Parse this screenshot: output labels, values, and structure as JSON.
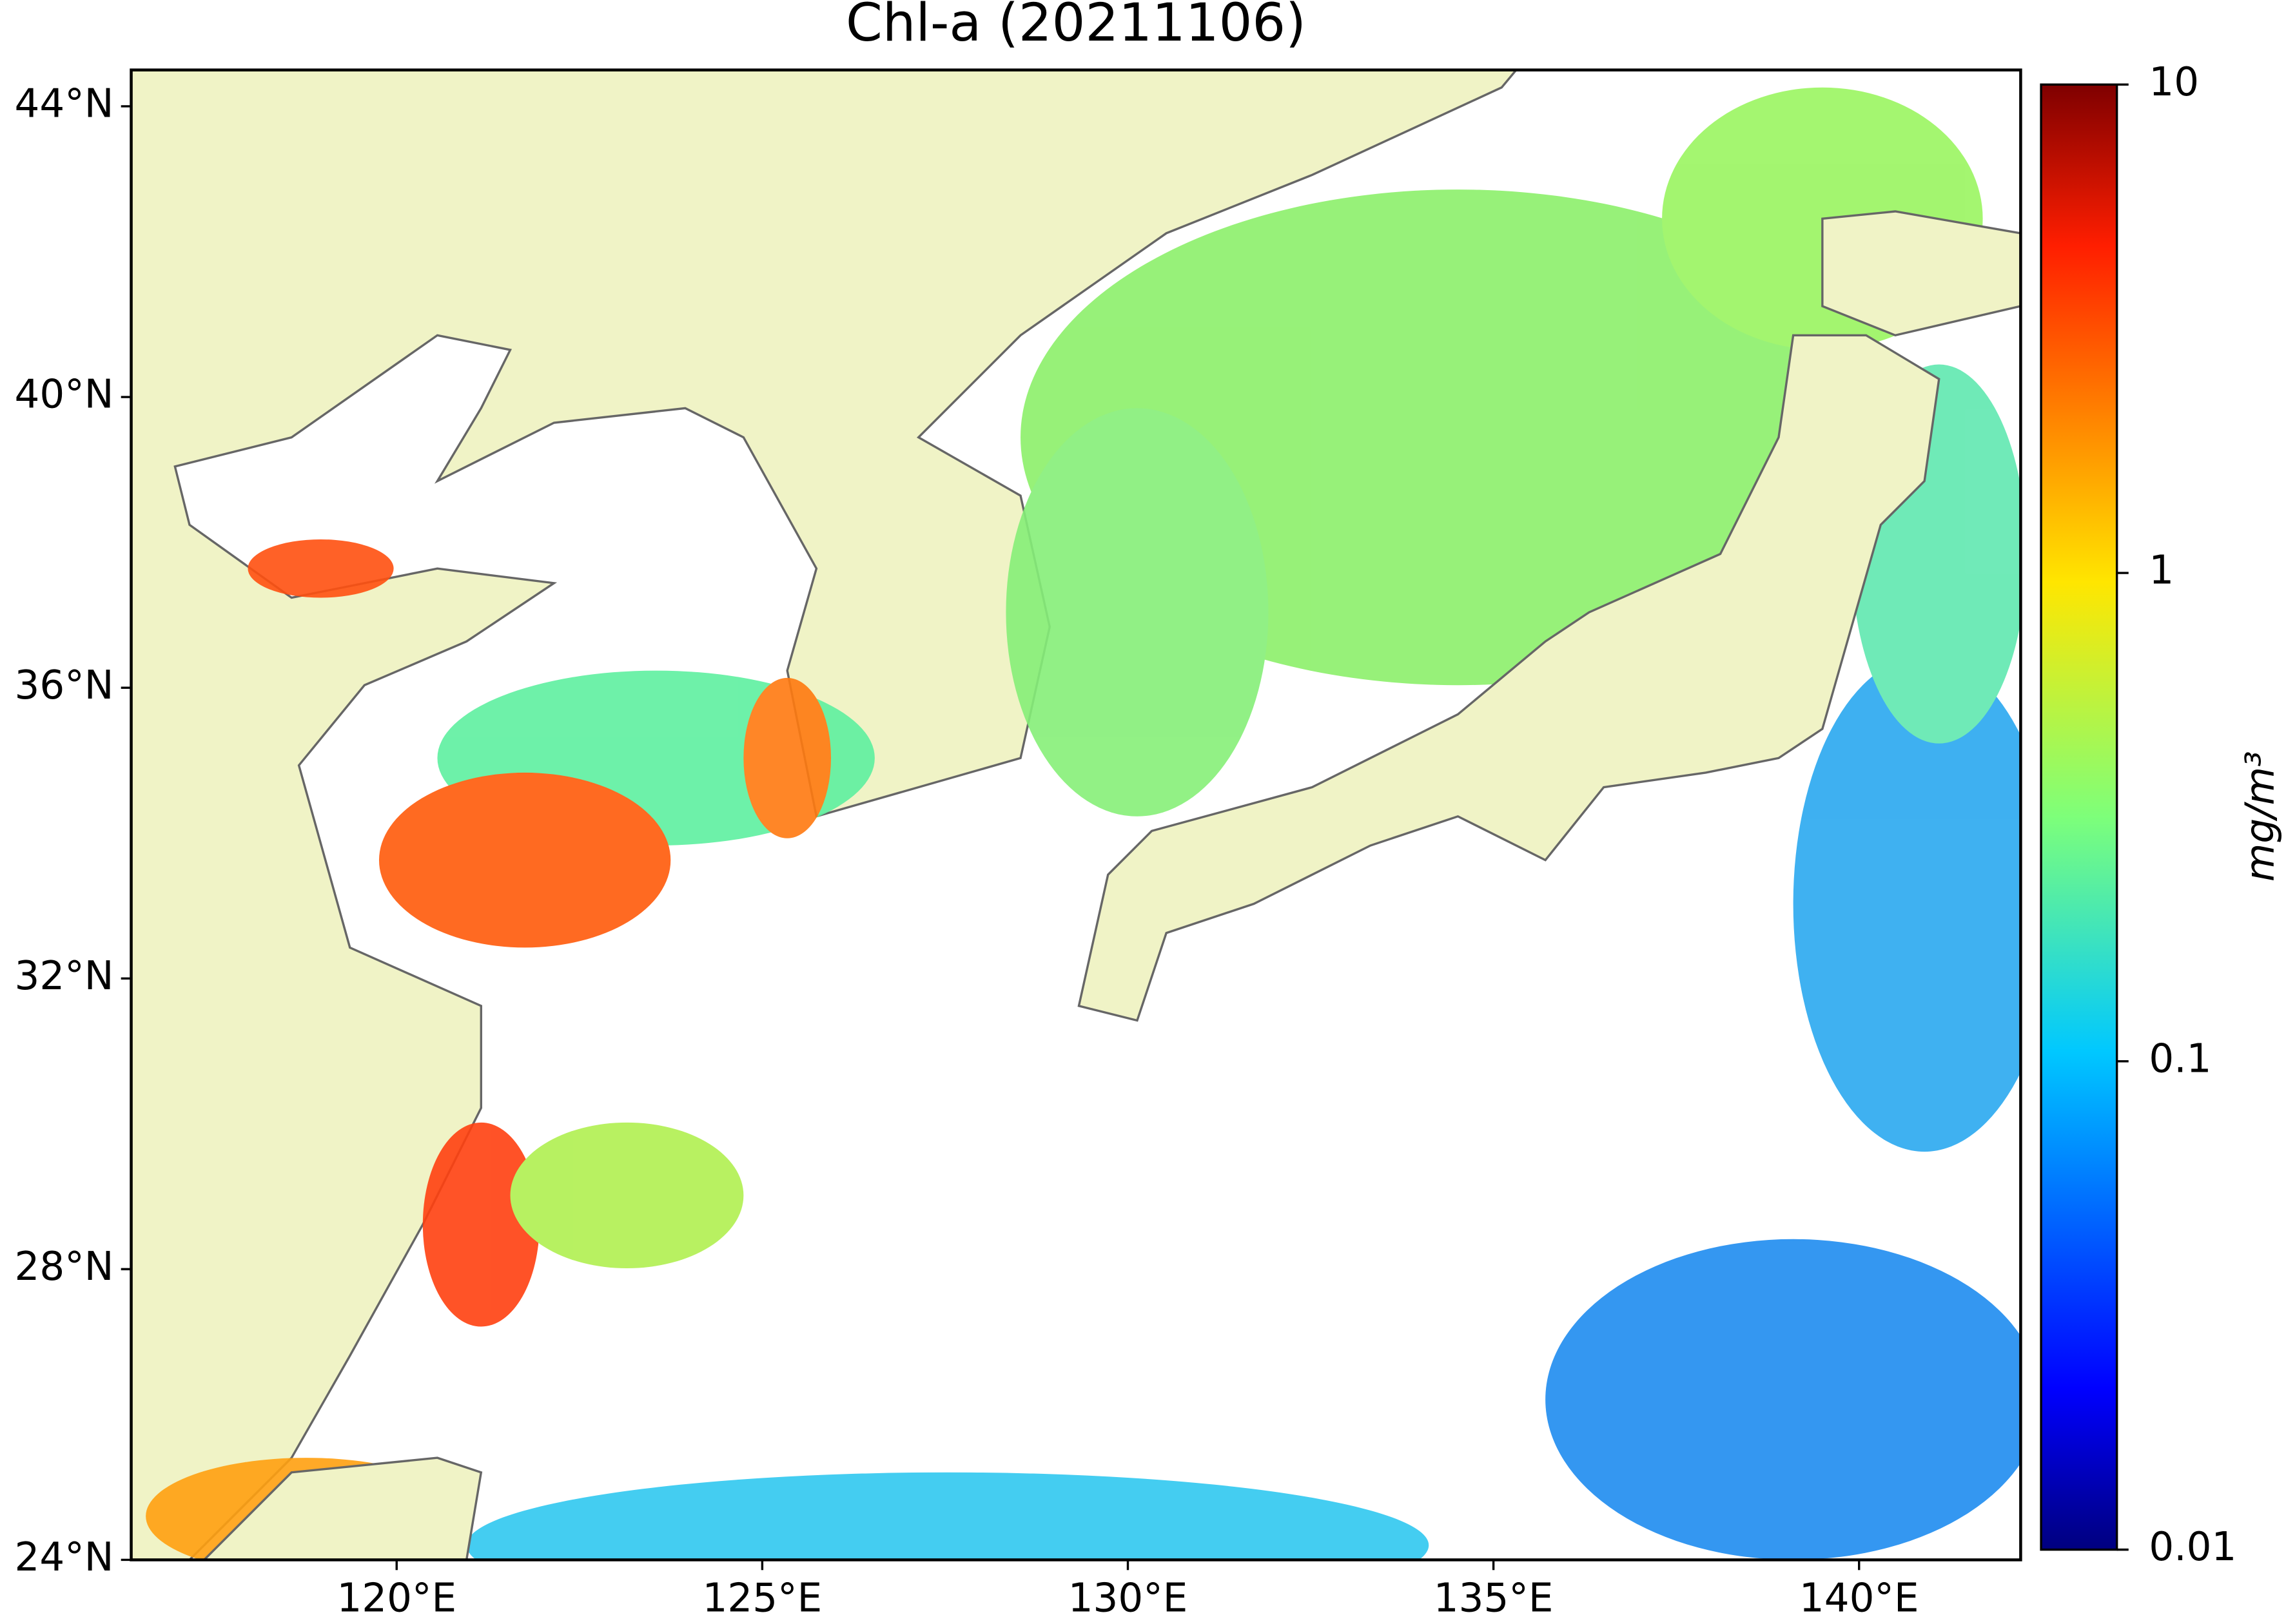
{
  "chart_data": {
    "type": "map",
    "title": "Chl-a (20211106)",
    "xlim": [
      116.37,
      142.21
    ],
    "ylim": [
      24,
      44.5
    ],
    "xticks": [
      {
        "value": 120,
        "label": "120°E"
      },
      {
        "value": 125,
        "label": "125°E"
      },
      {
        "value": 130,
        "label": "130°E"
      },
      {
        "value": 135,
        "label": "135°E"
      },
      {
        "value": 140,
        "label": "140°E"
      }
    ],
    "yticks": [
      {
        "value": 24,
        "label": "24°N"
      },
      {
        "value": 28,
        "label": "28°N"
      },
      {
        "value": 32,
        "label": "32°N"
      },
      {
        "value": 36,
        "label": "36°N"
      },
      {
        "value": 40,
        "label": "40°N"
      },
      {
        "value": 44,
        "label": "44°N"
      }
    ],
    "colorbar": {
      "label": "mg/m³",
      "scale": "log",
      "lim": [
        0.01,
        10
      ],
      "ticks": [
        0.01,
        0.1,
        1,
        10
      ],
      "colormap": "jet"
    }
  }
}
